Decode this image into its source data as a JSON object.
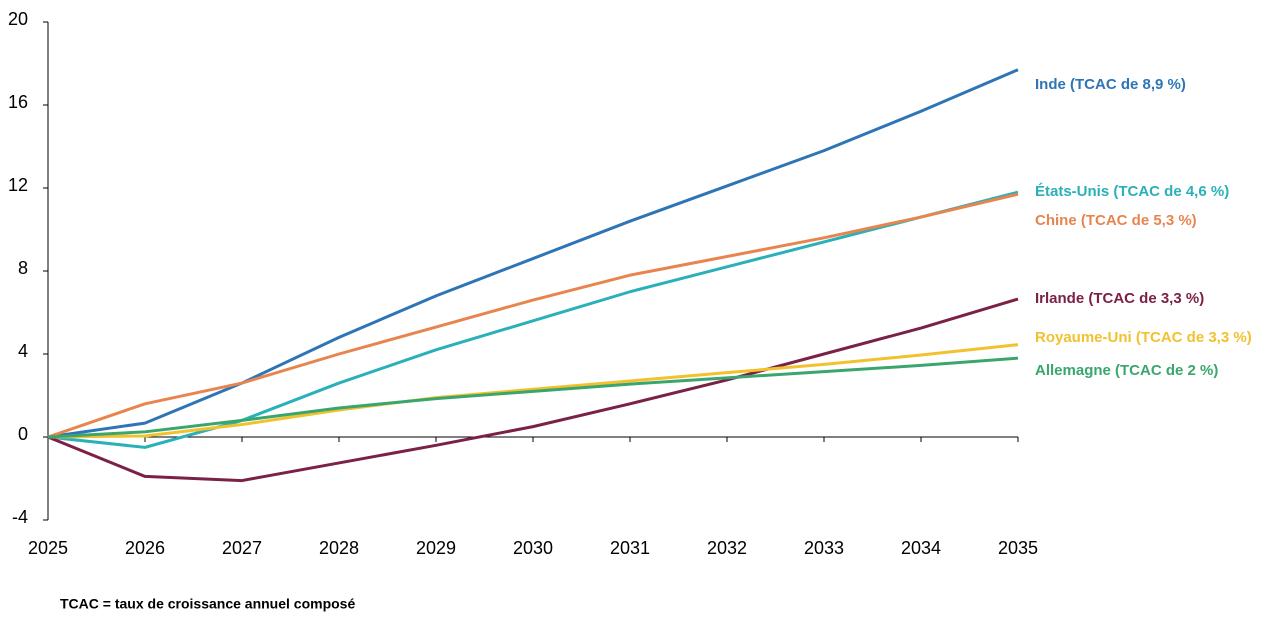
{
  "chart_data": {
    "type": "line",
    "note": "TCAC = taux de croissance annuel composé",
    "x": [
      2025,
      2026,
      2027,
      2028,
      2029,
      2030,
      2031,
      2032,
      2033,
      2034,
      2035
    ],
    "xlim": [
      2025,
      2035
    ],
    "xticks": [
      2025,
      2026,
      2027,
      2028,
      2029,
      2030,
      2031,
      2032,
      2033,
      2034,
      2035
    ],
    "ylim": [
      -4,
      20
    ],
    "yticks": [
      -4,
      0,
      4,
      8,
      12,
      16,
      20
    ],
    "grid": false,
    "series": [
      {
        "name": "Inde (TCAC de 8,9 %)",
        "color": "#2e75b6",
        "values": [
          0,
          0.67,
          2.6,
          4.8,
          6.8,
          8.6,
          10.4,
          12.1,
          13.8,
          15.7,
          17.7
        ]
      },
      {
        "name": "États-Unis (TCAC de 4,6 %)",
        "color": "#2ab0b8",
        "values": [
          0,
          -0.5,
          0.8,
          2.6,
          4.2,
          5.6,
          7.0,
          8.2,
          9.4,
          10.6,
          11.8
        ]
      },
      {
        "name": "Chine (TCAC de 5,3 %)",
        "color": "#e8854f",
        "values": [
          0,
          1.6,
          2.6,
          4.0,
          5.3,
          6.6,
          7.8,
          8.7,
          9.6,
          10.6,
          11.7
        ]
      },
      {
        "name": "Irlande (TCAC de 3,3 %)",
        "color": "#7b2148",
        "values": [
          0,
          -1.9,
          -2.1,
          -1.25,
          -0.4,
          0.5,
          1.6,
          2.75,
          4.0,
          5.25,
          6.65
        ]
      },
      {
        "name": "Royaume-Uni (TCAC de 3,3 %)",
        "color": "#f2c12e",
        "values": [
          0,
          0.05,
          0.6,
          1.3,
          1.9,
          2.3,
          2.7,
          3.1,
          3.5,
          3.95,
          4.45
        ]
      },
      {
        "name": "Allemagne (TCAC de 2 %)",
        "color": "#3aa66e",
        "values": [
          0,
          0.25,
          0.8,
          1.4,
          1.85,
          2.2,
          2.55,
          2.85,
          3.15,
          3.45,
          3.8
        ]
      }
    ]
  }
}
